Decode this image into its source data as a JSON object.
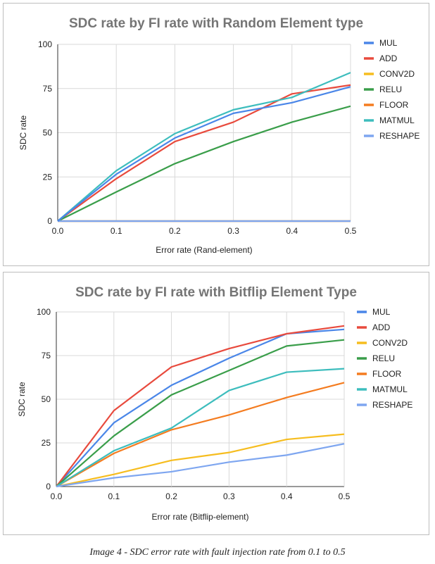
{
  "caption": "Image 4 - SDC error rate with fault injection rate from 0.1 to 0.5",
  "series_colors": {
    "MUL": "#4a86e8",
    "ADD": "#e84a3d",
    "CONV2D": "#f6bd1f",
    "RELU": "#3a9e4a",
    "FLOOR": "#f47c20",
    "MATMUL": "#3dbdbd",
    "RESHAPE": "#7ea6f0"
  },
  "chart_data": [
    {
      "type": "line",
      "title": "SDC rate by FI rate with Random Element type",
      "xlabel": "Error rate (Rand-element)",
      "ylabel": "SDC rate",
      "x": [
        0.0,
        0.1,
        0.2,
        0.3,
        0.4,
        0.5
      ],
      "x_ticks": [
        "0.0",
        "0.1",
        "0.2",
        "0.3",
        "0.4",
        "0.5"
      ],
      "y_ticks": [
        "0",
        "25",
        "50",
        "75",
        "100"
      ],
      "xlim": [
        0,
        0.5
      ],
      "ylim": [
        0,
        100
      ],
      "grid": true,
      "legend": "right",
      "series": [
        {
          "name": "MUL",
          "values": [
            0,
            0,
            0,
            0,
            0,
            0
          ]
        },
        {
          "name": "ADD",
          "values": [
            0,
            24,
            45,
            56,
            72,
            77
          ]
        },
        {
          "name": "CONV2D",
          "values": [
            0,
            0,
            0,
            0,
            0,
            0
          ]
        },
        {
          "name": "RELU",
          "values": [
            0,
            16.5,
            32.5,
            45,
            56,
            65
          ]
        },
        {
          "name": "FLOOR",
          "values": [
            0,
            0,
            0,
            0,
            0,
            0
          ]
        },
        {
          "name": "MATMUL",
          "values": [
            0,
            28.5,
            49.5,
            63,
            70,
            84
          ]
        },
        {
          "name": "RESHAPE",
          "values": [
            0,
            0,
            0,
            0,
            0,
            0
          ]
        },
        {
          "name": "MUL",
          "values": [
            0,
            26.5,
            47,
            61,
            67,
            76
          ],
          "legend": false
        }
      ]
    },
    {
      "type": "line",
      "title": "SDC rate by FI rate with Bitflip Element Type",
      "xlabel": "Error rate (Bitflip-element)",
      "ylabel": "SDC rate",
      "x": [
        0.0,
        0.1,
        0.2,
        0.3,
        0.4,
        0.5
      ],
      "x_ticks": [
        "0.0",
        "0.1",
        "0.2",
        "0.3",
        "0.4",
        "0.5"
      ],
      "y_ticks": [
        "0",
        "25",
        "50",
        "75",
        "100"
      ],
      "xlim": [
        0,
        0.5
      ],
      "ylim": [
        0,
        100
      ],
      "grid": true,
      "legend": "right",
      "series": [
        {
          "name": "MUL",
          "values": [
            0,
            36.5,
            58,
            73.5,
            87.5,
            90
          ]
        },
        {
          "name": "ADD",
          "values": [
            0,
            43.5,
            68.5,
            79,
            87.5,
            92
          ]
        },
        {
          "name": "CONV2D",
          "values": [
            0,
            7,
            15,
            19.5,
            27,
            30
          ]
        },
        {
          "name": "RELU",
          "values": [
            0,
            29,
            52.5,
            66.5,
            80.5,
            84
          ]
        },
        {
          "name": "FLOOR",
          "values": [
            0,
            19,
            32.5,
            41,
            51,
            59.5
          ]
        },
        {
          "name": "MATMUL",
          "values": [
            0,
            20.5,
            33.5,
            55,
            65.5,
            67.5
          ]
        },
        {
          "name": "RESHAPE",
          "values": [
            0,
            5,
            8.5,
            14,
            18,
            24.5
          ]
        }
      ]
    }
  ]
}
